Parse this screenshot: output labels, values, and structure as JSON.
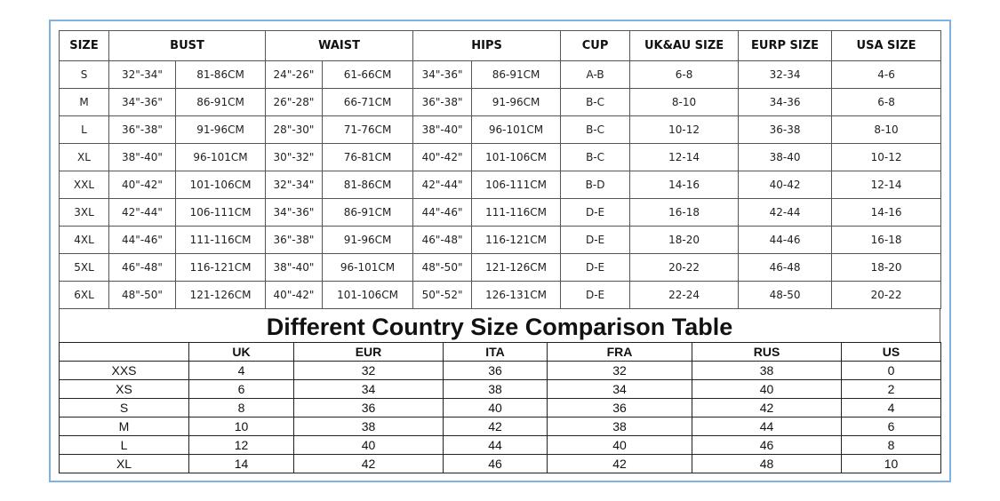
{
  "size_table": {
    "header": [
      "SIZE",
      "BUST",
      "WAIST",
      "HIPS",
      "CUP",
      "UK&AU SIZE",
      "EURP SIZE",
      "USA SIZE"
    ],
    "rows": [
      [
        "S",
        "32\"-34\"",
        "81-86CM",
        "24\"-26\"",
        "61-66CM",
        "34\"-36\"",
        "86-91CM",
        "A-B",
        "6-8",
        "32-34",
        "4-6"
      ],
      [
        "M",
        "34\"-36\"",
        "86-91CM",
        "26\"-28\"",
        "66-71CM",
        "36\"-38\"",
        "91-96CM",
        "B-C",
        "8-10",
        "34-36",
        "6-8"
      ],
      [
        "L",
        "36\"-38\"",
        "91-96CM",
        "28\"-30\"",
        "71-76CM",
        "38\"-40\"",
        "96-101CM",
        "B-C",
        "10-12",
        "36-38",
        "8-10"
      ],
      [
        "XL",
        "38\"-40\"",
        "96-101CM",
        "30\"-32\"",
        "76-81CM",
        "40\"-42\"",
        "101-106CM",
        "B-C",
        "12-14",
        "38-40",
        "10-12"
      ],
      [
        "XXL",
        "40\"-42\"",
        "101-106CM",
        "32\"-34\"",
        "81-86CM",
        "42\"-44\"",
        "106-111CM",
        "B-D",
        "14-16",
        "40-42",
        "12-14"
      ],
      [
        "3XL",
        "42\"-44\"",
        "106-111CM",
        "34\"-36\"",
        "86-91CM",
        "44\"-46\"",
        "111-116CM",
        "D-E",
        "16-18",
        "42-44",
        "14-16"
      ],
      [
        "4XL",
        "44\"-46\"",
        "111-116CM",
        "36\"-38\"",
        "91-96CM",
        "46\"-48\"",
        "116-121CM",
        "D-E",
        "18-20",
        "44-46",
        "16-18"
      ],
      [
        "5XL",
        "46\"-48\"",
        "116-121CM",
        "38\"-40\"",
        "96-101CM",
        "48\"-50\"",
        "121-126CM",
        "D-E",
        "20-22",
        "46-48",
        "18-20"
      ],
      [
        "6XL",
        "48\"-50\"",
        "121-126CM",
        "40\"-42\"",
        "101-106CM",
        "50\"-52\"",
        "126-131CM",
        "D-E",
        "22-24",
        "48-50",
        "20-22"
      ]
    ]
  },
  "comparison": {
    "title": "Different Country Size Comparison Table",
    "header": [
      "UK",
      "EUR",
      "ITA",
      "FRA",
      "RUS",
      "US"
    ],
    "rows": [
      [
        "XXS",
        4,
        32,
        36,
        32,
        38,
        0
      ],
      [
        "XS",
        6,
        34,
        38,
        34,
        40,
        2
      ],
      [
        "S",
        8,
        36,
        40,
        36,
        42,
        4
      ],
      [
        "M",
        10,
        38,
        42,
        38,
        44,
        6
      ],
      [
        "L",
        12,
        40,
        44,
        40,
        46,
        8
      ],
      [
        "XL",
        14,
        42,
        46,
        42,
        48,
        10
      ]
    ]
  }
}
